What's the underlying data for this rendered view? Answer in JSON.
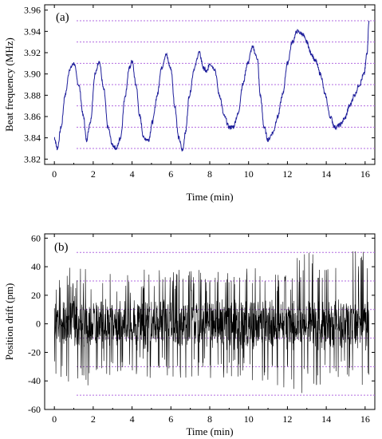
{
  "chart_data": [
    {
      "type": "line",
      "panel_label": "(a)",
      "xlabel": "Time (min)",
      "ylabel": "Beat frequency (MHz)",
      "xlim": [
        -0.5,
        16.5
      ],
      "ylim": [
        3.815,
        3.965
      ],
      "xticks": [
        0,
        2,
        4,
        6,
        8,
        10,
        12,
        14,
        16
      ],
      "yticks": [
        3.82,
        3.84,
        3.86,
        3.88,
        3.9,
        3.92,
        3.94,
        3.96
      ],
      "ytick_labels": [
        "3.82",
        "3.84",
        "3.86",
        "3.88",
        "3.90",
        "3.92",
        "3.94",
        "3.96"
      ],
      "reference_lines": [
        3.83,
        3.85,
        3.87,
        3.89,
        3.91,
        3.93,
        3.95
      ],
      "reference_line_color": "#b26be0",
      "line_color": "#1c1c9a",
      "series": [
        {
          "x": [
            0.0,
            0.15,
            0.35,
            0.55,
            0.8,
            1.0,
            1.25,
            1.5,
            1.65,
            1.85,
            2.1,
            2.3,
            2.55,
            2.75,
            3.0,
            3.2,
            3.4,
            3.65,
            3.85,
            4.0,
            4.2,
            4.4,
            4.6,
            4.85,
            5.05,
            5.3,
            5.5,
            5.75,
            6.0,
            6.2,
            6.4,
            6.6,
            6.75,
            6.95,
            7.2,
            7.45,
            7.7,
            7.85,
            8.0,
            8.25,
            8.5,
            8.75,
            9.0,
            9.2,
            9.45,
            9.7,
            9.95,
            10.2,
            10.45,
            10.6,
            10.8,
            11.0,
            11.25,
            11.5,
            11.75,
            12.0,
            12.25,
            12.5,
            12.75,
            13.0,
            13.2,
            13.45,
            13.7,
            13.95,
            14.2,
            14.45,
            14.7,
            14.95,
            15.2,
            15.45,
            15.7,
            15.95,
            16.1,
            16.2
          ],
          "y": [
            3.84,
            3.83,
            3.85,
            3.88,
            3.905,
            3.91,
            3.89,
            3.86,
            3.838,
            3.855,
            3.9,
            3.912,
            3.885,
            3.85,
            3.833,
            3.83,
            3.84,
            3.88,
            3.905,
            3.912,
            3.89,
            3.86,
            3.84,
            3.838,
            3.855,
            3.88,
            3.905,
            3.918,
            3.905,
            3.87,
            3.84,
            3.828,
            3.845,
            3.88,
            3.905,
            3.92,
            3.905,
            3.902,
            3.91,
            3.905,
            3.88,
            3.86,
            3.85,
            3.85,
            3.862,
            3.89,
            3.91,
            3.925,
            3.915,
            3.88,
            3.85,
            3.838,
            3.845,
            3.86,
            3.88,
            3.91,
            3.93,
            3.94,
            3.938,
            3.93,
            3.92,
            3.912,
            3.9,
            3.88,
            3.86,
            3.85,
            3.852,
            3.858,
            3.87,
            3.88,
            3.89,
            3.9,
            3.92,
            3.95
          ]
        }
      ]
    },
    {
      "type": "line",
      "panel_label": "(b)",
      "xlabel": "Time (min)",
      "ylabel": "Position drift (pm)",
      "xlim": [
        -0.5,
        16.5
      ],
      "ylim": [
        -60,
        63
      ],
      "xticks": [
        0,
        2,
        4,
        6,
        8,
        10,
        12,
        14,
        16
      ],
      "yticks": [
        -60,
        -40,
        -20,
        0,
        20,
        40,
        60
      ],
      "ytick_labels": [
        "-60",
        "-40",
        "-20",
        "0",
        "20",
        "40",
        "60"
      ],
      "reference_lines": [
        -50,
        -30,
        -10,
        10,
        30,
        50
      ],
      "reference_line_color": "#b26be0",
      "line_color": "#000000",
      "series": [
        {
          "note_free_envelope": true,
          "x": [
            0,
            1,
            2,
            3,
            4,
            5,
            6,
            7,
            8,
            9,
            10,
            11,
            12,
            13,
            14,
            15,
            16,
            16.2
          ],
          "y_max": [
            32,
            42,
            38,
            36,
            36,
            40,
            38,
            38,
            38,
            36,
            40,
            38,
            36,
            57,
            48,
            48,
            60,
            58
          ],
          "y_min": [
            -38,
            -42,
            -45,
            -40,
            -38,
            -38,
            -40,
            -40,
            -40,
            -38,
            -40,
            -44,
            -46,
            -52,
            -42,
            -42,
            -48,
            -52
          ]
        }
      ]
    }
  ]
}
